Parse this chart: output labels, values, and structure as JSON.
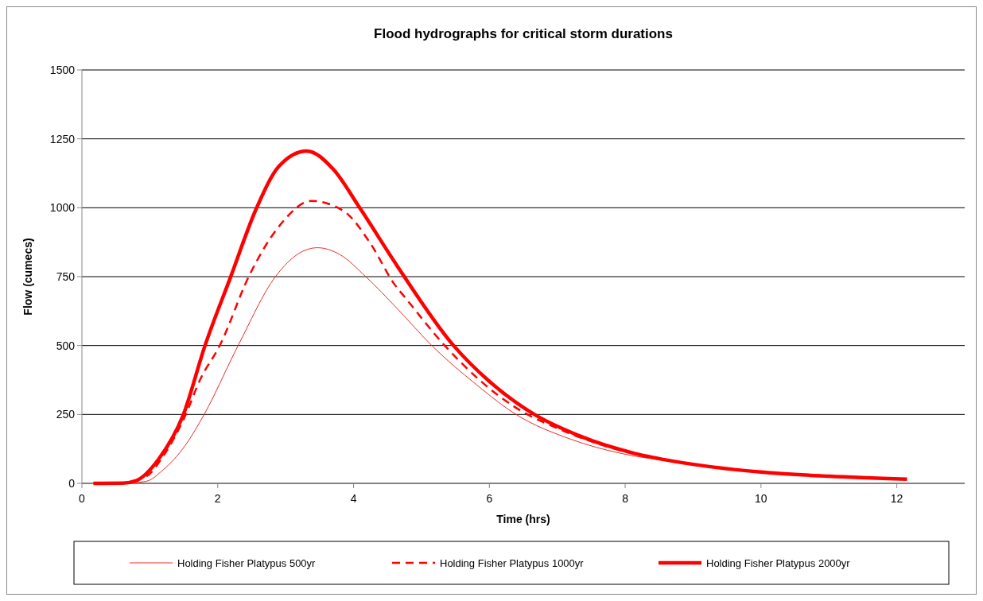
{
  "chart_data": {
    "type": "line",
    "title": "Flood hydrographs for critical storm durations",
    "xlabel": "Time (hrs)",
    "ylabel": "Flow (cumecs)",
    "xlim": [
      0,
      13
    ],
    "xticks": [
      0,
      2,
      4,
      6,
      8,
      10,
      12
    ],
    "ylim": [
      0,
      1500
    ],
    "yticks": [
      0,
      250,
      500,
      750,
      1000,
      1250,
      1500
    ],
    "grid": "y",
    "legend": "bottom",
    "series": [
      {
        "name": "Holding Fisher Platypus 500yr",
        "color": "#f02828",
        "line_style": "solid",
        "x": [
          0.17,
          0.6,
          0.94,
          1.2,
          1.52,
          1.8,
          2.3,
          2.85,
          3.2,
          3.47,
          3.8,
          4.18,
          4.64,
          5.16,
          5.8,
          6.4,
          7.2,
          7.95,
          8.74,
          10,
          11,
          12.15
        ],
        "values": [
          0,
          0,
          7,
          50,
          137,
          250,
          500,
          750,
          835,
          855,
          830,
          750,
          635,
          498,
          360,
          249,
          160,
          108,
          78,
          41,
          26,
          15
        ]
      },
      {
        "name": "Holding Fisher Platypus 1000yr",
        "color": "#ff0000",
        "line_style": "dashed",
        "x": [
          0.17,
          0.5,
          0.94,
          1.2,
          1.5,
          1.75,
          2.03,
          2.46,
          2.92,
          3.38,
          3.86,
          4.25,
          4.6,
          4.76,
          5.35,
          6.4,
          7,
          8.15,
          8.74,
          10,
          11,
          12.15
        ],
        "values": [
          0,
          0,
          24,
          100,
          234,
          381,
          500,
          752,
          938,
          1025,
          987,
          870,
          723,
          674,
          498,
          273,
          200,
          106,
          78,
          41,
          26,
          15
        ]
      },
      {
        "name": "Holding Fisher Platypus 2000yr",
        "color": "#ff0000",
        "line_style": "solid",
        "x": [
          0.17,
          0.6,
          0.8,
          1.13,
          1.49,
          1.81,
          2.19,
          2.57,
          2.9,
          3.31,
          3.7,
          4.09,
          4.64,
          5.48,
          6,
          6.67,
          7.3,
          8.15,
          8.74,
          10,
          11,
          12.15
        ],
        "values": [
          0,
          1,
          10,
          88,
          247,
          498,
          749,
          998,
          1150,
          1206,
          1140,
          1000,
          790,
          498,
          370,
          249,
          175,
          108,
          79,
          41,
          26,
          15
        ]
      }
    ]
  }
}
